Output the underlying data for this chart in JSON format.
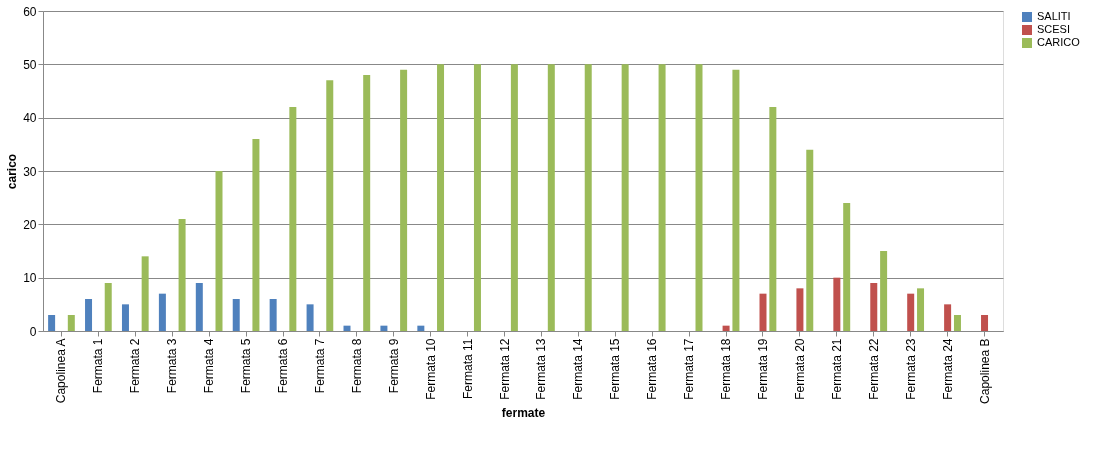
{
  "chart_data": {
    "type": "bar",
    "xlabel": "fermate",
    "ylabel": "carico",
    "categories": [
      "Capolinea A",
      "Fermata 1",
      "Fermata 2",
      "Fermata 3",
      "Fermata 4",
      "Fermata 5",
      "Fermata 6",
      "Fermata 7",
      "Fermata 8",
      "Fermata 9",
      "Fermata 10",
      "Fermata 11",
      "Fermata 12",
      "Fermata 13",
      "Fermata 14",
      "Fermata 15",
      "Fermata 16",
      "Fermata 17",
      "Fermata 18",
      "Fermata 19",
      "Fermata 20",
      "Fermata 21",
      "Fermata 22",
      "Fermata 23",
      "Fermata 24",
      "Capolinea B"
    ],
    "series": [
      {
        "name": "SALITI",
        "color": "#4f81bd",
        "values": [
          3,
          6,
          5,
          7,
          9,
          6,
          6,
          5,
          1,
          1,
          1,
          0,
          0,
          0,
          0,
          0,
          0,
          0,
          0,
          0,
          0,
          0,
          0,
          0,
          0,
          0
        ]
      },
      {
        "name": "SCESI",
        "color": "#c0504d",
        "values": [
          0,
          0,
          0,
          0,
          0,
          0,
          0,
          0,
          0,
          0,
          0,
          0,
          0,
          0,
          0,
          0,
          0,
          0,
          1,
          7,
          8,
          10,
          9,
          7,
          5,
          3
        ]
      },
      {
        "name": "CARICO",
        "color": "#9bbb59",
        "values": [
          3,
          9,
          14,
          21,
          30,
          36,
          42,
          47,
          48,
          49,
          50,
          50,
          50,
          50,
          50,
          50,
          50,
          50,
          49,
          42,
          34,
          24,
          15,
          8,
          3,
          0
        ]
      }
    ],
    "ylim": [
      0,
      60
    ],
    "yticks": [
      0,
      10,
      20,
      30,
      40,
      50,
      60
    ],
    "grid": "y",
    "legend": "right"
  }
}
